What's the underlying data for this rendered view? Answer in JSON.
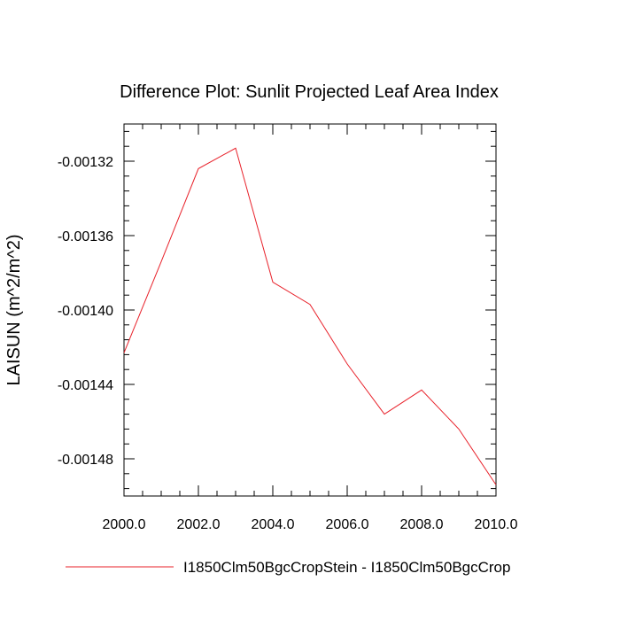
{
  "chart_data": {
    "type": "line",
    "title": "Difference Plot: Sunlit Projected Leaf Area Index",
    "xlabel": "",
    "ylabel": "LAISUN  (m^2/m^2)",
    "xlim": [
      2000,
      2010
    ],
    "ylim": [
      -0.0015,
      -0.0013
    ],
    "x_ticks": [
      2000,
      2002,
      2004,
      2006,
      2008,
      2010
    ],
    "x_tick_labels": [
      "2000.0",
      "2002.0",
      "2004.0",
      "2006.0",
      "2008.0",
      "2010.0"
    ],
    "y_ticks": [
      -0.00132,
      -0.00136,
      -0.0014,
      -0.00144,
      -0.00148
    ],
    "y_tick_labels": [
      "-0.00132",
      "-0.00136",
      "-0.00140",
      "-0.00144",
      "-0.00148"
    ],
    "x_minor_step": 0.5,
    "y_minor_step": 8e-06,
    "grid": false,
    "legend_position": "bottom",
    "series": [
      {
        "name": "I1850Clm50BgcCropStein - I1850Clm50BgcCrop",
        "color": "#e8212a",
        "x": [
          2000,
          2001,
          2002,
          2003,
          2004,
          2005,
          2006,
          2007,
          2008,
          2009,
          2010
        ],
        "y": [
          -0.001423,
          -0.001374,
          -0.001324,
          -0.001313,
          -0.001385,
          -0.001397,
          -0.001429,
          -0.001456,
          -0.001443,
          -0.001464,
          -0.001494
        ]
      }
    ]
  }
}
